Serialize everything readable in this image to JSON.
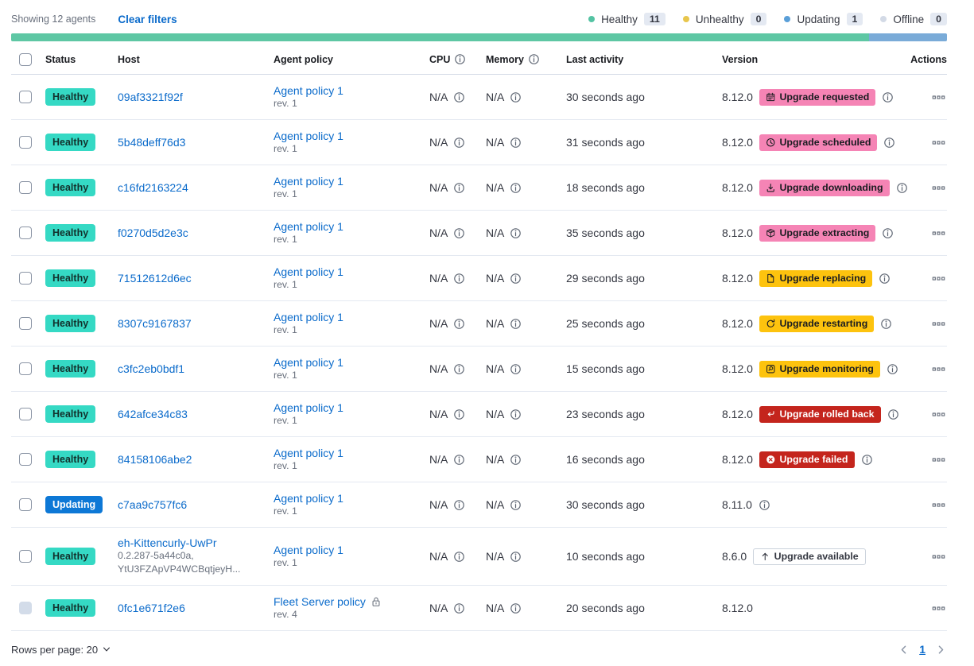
{
  "colors": {
    "link": "#0b6bcb",
    "subdued": "#69707d",
    "healthy": "#35d9c4",
    "updating": "#0d78d6",
    "accent": "#f584b5",
    "warning": "#fdc30e",
    "danger": "#c4251d",
    "countBg": "#e4e9f2",
    "barGreen": "#5ec7a4",
    "barBlue": "#7aabd8"
  },
  "header": {
    "showing": "Showing 12 agents",
    "clear_filters": "Clear filters",
    "legend": [
      {
        "label": "Healthy",
        "count": "11",
        "color": "#54c3a3"
      },
      {
        "label": "Unhealthy",
        "count": "0",
        "color": "#e8c64c"
      },
      {
        "label": "Updating",
        "count": "1",
        "color": "#5a9fd8"
      },
      {
        "label": "Offline",
        "count": "0",
        "color": "#d3dae6"
      }
    ],
    "health_bar": {
      "segments": [
        {
          "color": "#5ec7a4",
          "fraction": 0.9167
        },
        {
          "color": "#7aabd8",
          "fraction": 0.0833
        }
      ]
    }
  },
  "table": {
    "columns": {
      "status": "Status",
      "host": "Host",
      "policy": "Agent policy",
      "cpu": "CPU",
      "memory": "Memory",
      "last_activity": "Last activity",
      "version": "Version",
      "actions": "Actions"
    },
    "rows": [
      {
        "status": "Healthy",
        "status_type": "healthy",
        "host": "09af3321f92f",
        "host_sub": [],
        "policy": "Agent policy 1",
        "policy_rev": "rev. 1",
        "policy_locked": false,
        "cpu": "N/A",
        "memory": "N/A",
        "last_activity": "30 seconds ago",
        "version": "8.12.0",
        "upgrade": {
          "label": "Upgrade requested",
          "type": "accent",
          "icon": "calendar-icon"
        },
        "version_info": true,
        "checkbox_disabled": false
      },
      {
        "status": "Healthy",
        "status_type": "healthy",
        "host": "5b48deff76d3",
        "host_sub": [],
        "policy": "Agent policy 1",
        "policy_rev": "rev. 1",
        "policy_locked": false,
        "cpu": "N/A",
        "memory": "N/A",
        "last_activity": "31 seconds ago",
        "version": "8.12.0",
        "upgrade": {
          "label": "Upgrade scheduled",
          "type": "accent",
          "icon": "clock-icon"
        },
        "version_info": true,
        "checkbox_disabled": false
      },
      {
        "status": "Healthy",
        "status_type": "healthy",
        "host": "c16fd2163224",
        "host_sub": [],
        "policy": "Agent policy 1",
        "policy_rev": "rev. 1",
        "policy_locked": false,
        "cpu": "N/A",
        "memory": "N/A",
        "last_activity": "18 seconds ago",
        "version": "8.12.0",
        "upgrade": {
          "label": "Upgrade downloading",
          "type": "accent",
          "icon": "download-icon"
        },
        "version_info": true,
        "checkbox_disabled": false
      },
      {
        "status": "Healthy",
        "status_type": "healthy",
        "host": "f0270d5d2e3c",
        "host_sub": [],
        "policy": "Agent policy 1",
        "policy_rev": "rev. 1",
        "policy_locked": false,
        "cpu": "N/A",
        "memory": "N/A",
        "last_activity": "35 seconds ago",
        "version": "8.12.0",
        "upgrade": {
          "label": "Upgrade extracting",
          "type": "accent",
          "icon": "package-icon"
        },
        "version_info": true,
        "checkbox_disabled": false
      },
      {
        "status": "Healthy",
        "status_type": "healthy",
        "host": "71512612d6ec",
        "host_sub": [],
        "policy": "Agent policy 1",
        "policy_rev": "rev. 1",
        "policy_locked": false,
        "cpu": "N/A",
        "memory": "N/A",
        "last_activity": "29 seconds ago",
        "version": "8.12.0",
        "upgrade": {
          "label": "Upgrade replacing",
          "type": "warning",
          "icon": "document-icon"
        },
        "version_info": true,
        "checkbox_disabled": false
      },
      {
        "status": "Healthy",
        "status_type": "healthy",
        "host": "8307c9167837",
        "host_sub": [],
        "policy": "Agent policy 1",
        "policy_rev": "rev. 1",
        "policy_locked": false,
        "cpu": "N/A",
        "memory": "N/A",
        "last_activity": "25 seconds ago",
        "version": "8.12.0",
        "upgrade": {
          "label": "Upgrade restarting",
          "type": "warning",
          "icon": "refresh-icon"
        },
        "version_info": true,
        "checkbox_disabled": false
      },
      {
        "status": "Healthy",
        "status_type": "healthy",
        "host": "c3fc2eb0bdf1",
        "host_sub": [],
        "policy": "Agent policy 1",
        "policy_rev": "rev. 1",
        "policy_locked": false,
        "cpu": "N/A",
        "memory": "N/A",
        "last_activity": "15 seconds ago",
        "version": "8.12.0",
        "upgrade": {
          "label": "Upgrade monitoring",
          "type": "warning",
          "icon": "inspect-icon"
        },
        "version_info": true,
        "checkbox_disabled": false
      },
      {
        "status": "Healthy",
        "status_type": "healthy",
        "host": "642afce34c83",
        "host_sub": [],
        "policy": "Agent policy 1",
        "policy_rev": "rev. 1",
        "policy_locked": false,
        "cpu": "N/A",
        "memory": "N/A",
        "last_activity": "23 seconds ago",
        "version": "8.12.0",
        "upgrade": {
          "label": "Upgrade rolled back",
          "type": "danger",
          "icon": "return-icon"
        },
        "version_info": true,
        "checkbox_disabled": false
      },
      {
        "status": "Healthy",
        "status_type": "healthy",
        "host": "84158106abe2",
        "host_sub": [],
        "policy": "Agent policy 1",
        "policy_rev": "rev. 1",
        "policy_locked": false,
        "cpu": "N/A",
        "memory": "N/A",
        "last_activity": "16 seconds ago",
        "version": "8.12.0",
        "upgrade": {
          "label": "Upgrade failed",
          "type": "danger",
          "icon": "error-icon"
        },
        "version_info": true,
        "checkbox_disabled": false
      },
      {
        "status": "Updating",
        "status_type": "updating",
        "host": "c7aa9c757fc6",
        "host_sub": [],
        "policy": "Agent policy 1",
        "policy_rev": "rev. 1",
        "policy_locked": false,
        "cpu": "N/A",
        "memory": "N/A",
        "last_activity": "30 seconds ago",
        "version": "8.11.0",
        "upgrade": null,
        "version_info": true,
        "checkbox_disabled": false
      },
      {
        "status": "Healthy",
        "status_type": "healthy",
        "host": "eh-Kittencurly-UwPr",
        "host_sub": [
          "0.2.287-5a44c0a,",
          "YtU3FZApVP4WCBqtjeyH..."
        ],
        "policy": "Agent policy 1",
        "policy_rev": "rev. 1",
        "policy_locked": false,
        "cpu": "N/A",
        "memory": "N/A",
        "last_activity": "10 seconds ago",
        "version": "8.6.0",
        "upgrade": {
          "label": "Upgrade available",
          "type": "hollow",
          "icon": "arrow-up-icon"
        },
        "version_info": false,
        "checkbox_disabled": false
      },
      {
        "status": "Healthy",
        "status_type": "healthy",
        "host": "0fc1e671f2e6",
        "host_sub": [],
        "policy": "Fleet Server policy",
        "policy_rev": "rev. 4",
        "policy_locked": true,
        "cpu": "N/A",
        "memory": "N/A",
        "last_activity": "20 seconds ago",
        "version": "8.12.0",
        "upgrade": null,
        "version_info": false,
        "checkbox_disabled": true
      }
    ]
  },
  "footer": {
    "rows_per_page_label": "Rows per page: 20",
    "page": "1"
  }
}
